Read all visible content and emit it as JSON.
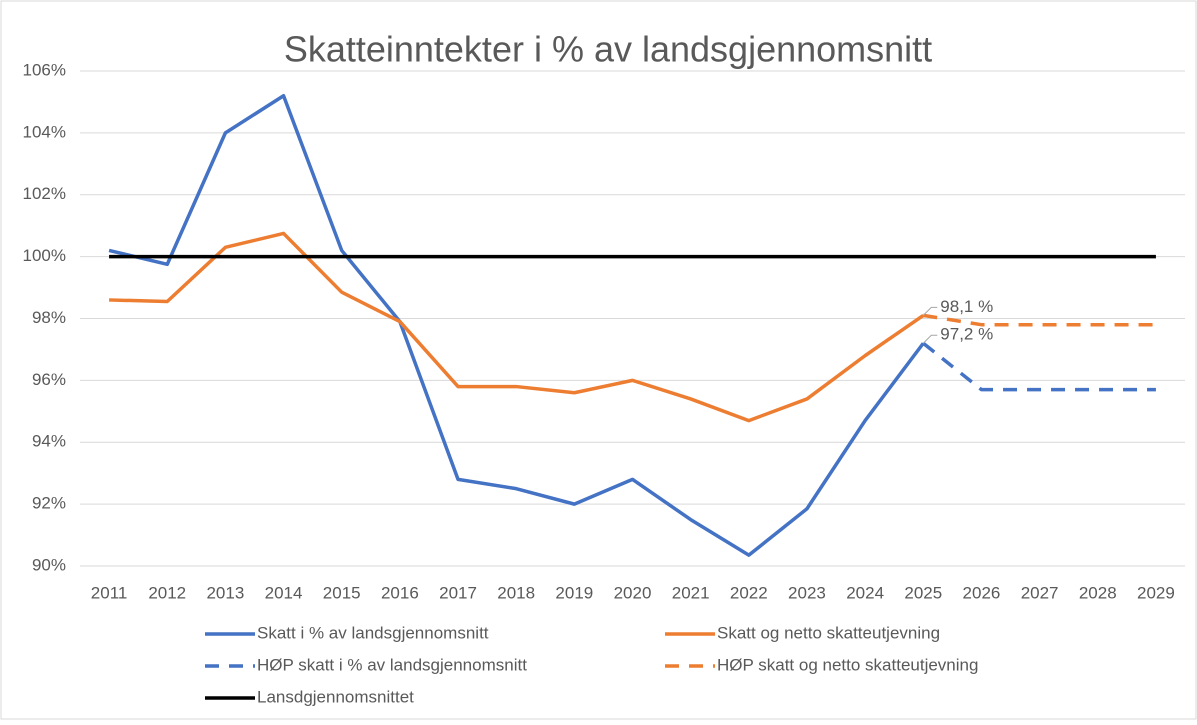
{
  "chart_data": {
    "type": "line",
    "title": "Skatteinntekter i % av landsgjennomsnitt",
    "categories": [
      "2011",
      "2012",
      "2013",
      "2014",
      "2015",
      "2016",
      "2017",
      "2018",
      "2019",
      "2020",
      "2021",
      "2022",
      "2023",
      "2024",
      "2025",
      "2026",
      "2027",
      "2028",
      "2029"
    ],
    "ylim": [
      90,
      106
    ],
    "yticks": [
      {
        "value": 90,
        "label": "90%"
      },
      {
        "value": 92,
        "label": "92%"
      },
      {
        "value": 94,
        "label": "94%"
      },
      {
        "value": 96,
        "label": "96%"
      },
      {
        "value": 98,
        "label": "98%"
      },
      {
        "value": 100,
        "label": "100%"
      },
      {
        "value": 102,
        "label": "102%"
      },
      {
        "value": 104,
        "label": "104%"
      },
      {
        "value": 106,
        "label": "106%"
      }
    ],
    "grid": true,
    "legend": "bottom",
    "series": [
      {
        "name": "Skatt i % av landsgjennomsnitt",
        "color": "#4472c4",
        "dashed": false,
        "values": [
          100.2,
          99.75,
          104.0,
          105.2,
          100.2,
          97.9,
          92.8,
          92.5,
          92.0,
          92.8,
          91.5,
          90.35,
          91.85,
          94.7,
          97.2,
          null,
          null,
          null,
          null
        ],
        "value_labels": [
          null,
          null,
          null,
          null,
          null,
          null,
          null,
          null,
          null,
          null,
          null,
          null,
          null,
          null,
          "97,2 %",
          null,
          null,
          null,
          null
        ]
      },
      {
        "name": "Skatt og netto skatteutjevning",
        "color": "#ed7d31",
        "dashed": false,
        "values": [
          98.6,
          98.55,
          100.3,
          100.75,
          98.85,
          97.9,
          95.8,
          95.8,
          95.6,
          96.0,
          95.4,
          94.7,
          95.4,
          96.8,
          98.1,
          null,
          null,
          null,
          null
        ],
        "value_labels": [
          null,
          null,
          null,
          null,
          null,
          null,
          null,
          null,
          null,
          null,
          null,
          null,
          null,
          null,
          "98,1 %",
          null,
          null,
          null,
          null
        ]
      },
      {
        "name": "HØP skatt i % av landsgjennomsnitt",
        "color": "#4472c4",
        "dashed": true,
        "values": [
          null,
          null,
          null,
          null,
          null,
          null,
          null,
          null,
          null,
          null,
          null,
          null,
          null,
          null,
          97.2,
          95.7,
          95.7,
          95.7,
          95.7
        ]
      },
      {
        "name": "HØP skatt og netto skatteutjevning",
        "color": "#ed7d31",
        "dashed": true,
        "values": [
          null,
          null,
          null,
          null,
          null,
          null,
          null,
          null,
          null,
          null,
          null,
          null,
          null,
          null,
          98.1,
          97.8,
          97.8,
          97.8,
          97.8
        ]
      },
      {
        "name": "Lansdgjennomsnittet",
        "color": "#000000",
        "dashed": false,
        "values": [
          100,
          100,
          100,
          100,
          100,
          100,
          100,
          100,
          100,
          100,
          100,
          100,
          100,
          100,
          100,
          100,
          100,
          100,
          100
        ]
      }
    ]
  }
}
